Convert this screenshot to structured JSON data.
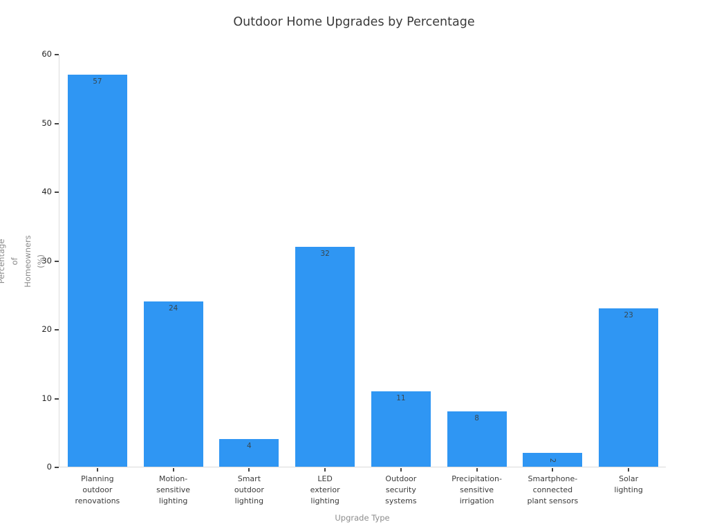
{
  "chart_data": {
    "type": "bar",
    "title": "Outdoor Home Upgrades by Percentage",
    "xlabel": "Upgrade Type",
    "ylabel": "Percentage of Homeowners (%)",
    "ylabel_lines": [
      "Percentage of",
      "Homeowners (%)"
    ],
    "categories": [
      "Planning outdoor renovations",
      "Motion-sensitive lighting",
      "Smart outdoor lighting",
      "LED exterior lighting",
      "Outdoor security systems",
      "Precipitation-sensitive irrigation",
      "Smartphone-connected plant sensors",
      "Solar lighting"
    ],
    "category_lines": [
      [
        "Planning",
        "outdoor",
        "renovations"
      ],
      [
        "Motion-",
        "sensitive",
        "lighting"
      ],
      [
        "Smart",
        "outdoor",
        "lighting"
      ],
      [
        "LED",
        "exterior",
        "lighting"
      ],
      [
        "Outdoor",
        "security",
        "systems"
      ],
      [
        "Precipitation-",
        "sensitive",
        "irrigation"
      ],
      [
        "Smartphone-",
        "connected",
        "plant sensors"
      ],
      [
        "Solar",
        "lighting"
      ]
    ],
    "values": [
      57,
      24,
      4,
      32,
      11,
      8,
      2,
      23
    ],
    "value_labels": [
      "57",
      "24",
      "4",
      "32",
      "11",
      "8",
      "2",
      "23"
    ],
    "rotated_value_labels": [
      false,
      false,
      false,
      false,
      false,
      false,
      true,
      false
    ],
    "ylim": [
      0,
      60
    ],
    "yticks": [
      0,
      10,
      20,
      30,
      40,
      50,
      60
    ],
    "grid": false,
    "legend": null,
    "colors": {
      "bar": "#2F96F3",
      "value_label": "#37474F",
      "ytick_label": "#262626",
      "category_label": "#3A3A3A",
      "axis_title": "#8C8C8C",
      "axis_line": "#D9D9D9",
      "tick_mark": "#444444",
      "title": "#3A3A3A",
      "background": "#FFFFFF"
    }
  }
}
